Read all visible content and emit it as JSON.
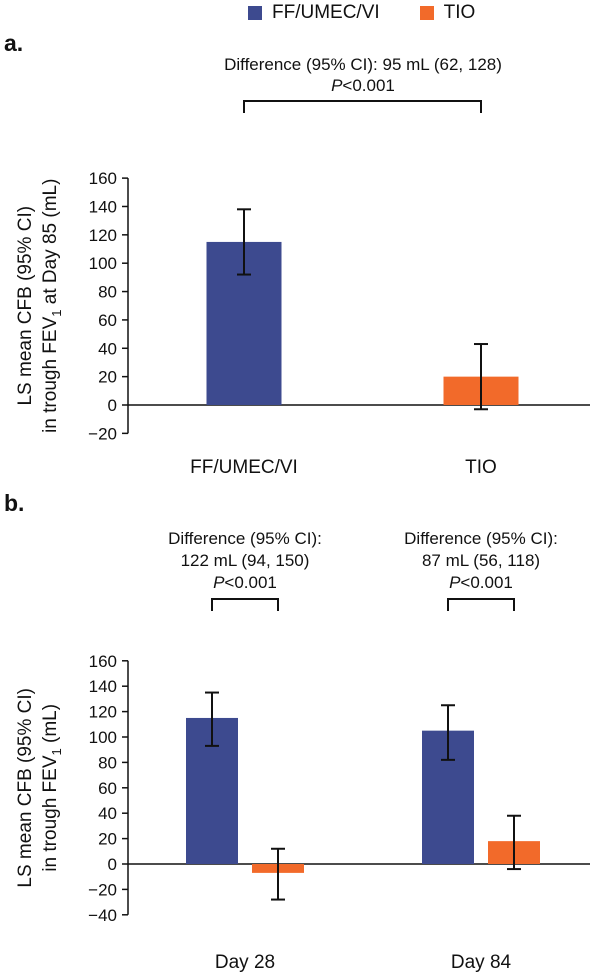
{
  "legend": {
    "items": [
      {
        "label": "FF/UMEC/VI",
        "color": "#3d4a8f"
      },
      {
        "label": "TIO",
        "color": "#f26a2a"
      }
    ]
  },
  "chart_data": [
    {
      "panel": "a.",
      "type": "bar",
      "ylabel_line1": "LS mean CFB (95% CI)",
      "ylabel_line2_pre": "in trough FEV",
      "ylabel_sub": "1",
      "ylabel_line2_post": " at Day 85 (mL)",
      "ylim": [
        -20,
        160
      ],
      "yticks": [
        -20,
        0,
        20,
        40,
        60,
        80,
        100,
        120,
        140,
        160
      ],
      "ytick_labels": [
        "−20",
        "0",
        "20",
        "40",
        "60",
        "80",
        "100",
        "120",
        "140",
        "160"
      ],
      "categories": [
        "FF/UMEC/VI",
        "TIO"
      ],
      "bars": [
        {
          "category": "FF/UMEC/VI",
          "series": "FF/UMEC/VI",
          "value": 115,
          "ci": [
            92,
            138
          ],
          "color": "#3d4a8f"
        },
        {
          "category": "TIO",
          "series": "TIO",
          "value": 20,
          "ci": [
            -3,
            43
          ],
          "color": "#f26a2a"
        }
      ],
      "annotation": {
        "line1": "Difference (95% CI): 95 mL (62, 128)",
        "p_italic": "P",
        "p_rest": "<0.001"
      }
    },
    {
      "panel": "b.",
      "type": "bar",
      "ylabel_line1": "LS mean CFB (95% CI)",
      "ylabel_line2_pre": "in trough FEV",
      "ylabel_sub": "1",
      "ylabel_line2_post": " (mL)",
      "ylim": [
        -40,
        160
      ],
      "yticks": [
        -40,
        -20,
        0,
        20,
        40,
        60,
        80,
        100,
        120,
        140,
        160
      ],
      "ytick_labels": [
        "−40",
        "−20",
        "0",
        "20",
        "40",
        "60",
        "80",
        "100",
        "120",
        "140",
        "160"
      ],
      "categories": [
        "Day 28",
        "Day 84"
      ],
      "series": [
        {
          "name": "FF/UMEC/VI",
          "color": "#3d4a8f",
          "values": [
            115,
            105
          ],
          "ci": [
            [
              93,
              135
            ],
            [
              82,
              125
            ]
          ]
        },
        {
          "name": "TIO",
          "color": "#f26a2a",
          "values": [
            -7,
            18
          ],
          "ci": [
            [
              -28,
              12
            ],
            [
              -4,
              38
            ]
          ]
        }
      ],
      "annotations": [
        {
          "category": "Day 28",
          "line1": "Difference (95% CI):",
          "line2": "122 mL (94, 150)",
          "p_italic": "P",
          "p_rest": "<0.001"
        },
        {
          "category": "Day 84",
          "line1": "Difference (95% CI):",
          "line2": "87 mL (56, 118)",
          "p_italic": "P",
          "p_rest": "<0.001"
        }
      ]
    }
  ]
}
